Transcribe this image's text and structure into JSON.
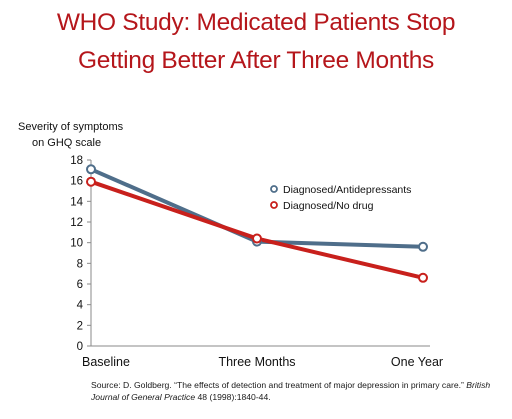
{
  "title": {
    "line1": "WHO Study: Medicated Patients Stop",
    "line2": "Getting Better After Three Months"
  },
  "chart_data": {
    "type": "line",
    "ylabel_line1": "Severity of symptoms",
    "ylabel_line2": "on GHQ scale",
    "xlabel": "",
    "categories": [
      "Baseline",
      "Three Months",
      "One Year"
    ],
    "ylim": [
      0,
      18
    ],
    "yticks": [
      0,
      2,
      4,
      6,
      8,
      10,
      12,
      14,
      16,
      18
    ],
    "grid": false,
    "legend_position": "right",
    "series": [
      {
        "name": "Diagnosed/Antidepressants",
        "values": [
          17.1,
          10.1,
          9.6
        ],
        "color": "#4f6e8a"
      },
      {
        "name": "Diagnosed/No drug",
        "values": [
          15.9,
          10.4,
          6.6
        ],
        "color": "#c8201c"
      }
    ]
  },
  "source": {
    "prefix": "Source: D. Goldberg. “The effects of detection and treatment of major depression in primary care.” ",
    "journal": "British Journal of General Practice",
    "suffix": " 48 (1998):1840-44."
  }
}
